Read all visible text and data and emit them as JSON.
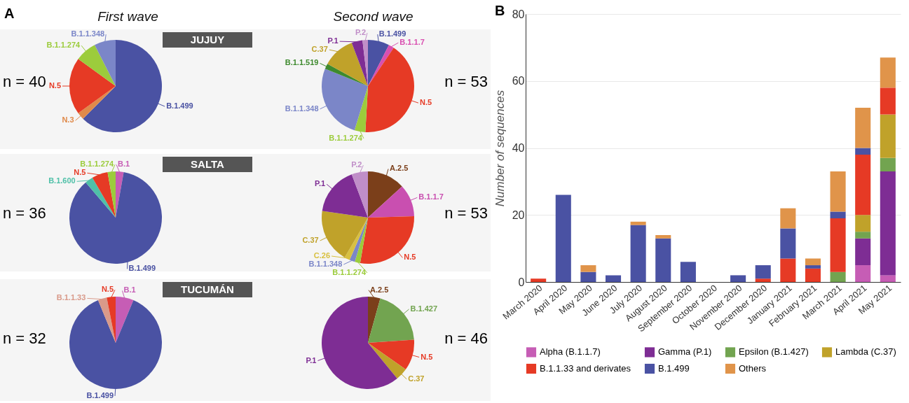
{
  "chart_data": [
    {
      "type": "pie",
      "title": "First wave",
      "subtitle": "JUJUY",
      "annotations": [
        "A",
        "n = 40"
      ],
      "categories": [
        "B.1.499",
        "N.3",
        "N.5",
        "B.1.1.274",
        "B.1.1.348"
      ],
      "values": [
        62.5,
        2.5,
        20,
        7.5,
        7.5
      ],
      "colors": [
        "#4a52a3",
        "#e08a4a",
        "#e63a25",
        "#9ccc3c",
        "#7b86c8"
      ]
    },
    {
      "type": "pie",
      "title": "Second wave",
      "annotations": [
        "n = 53"
      ],
      "categories": [
        "B.1.499",
        "B.1.1.7",
        "N.5",
        "B.1.1.274",
        "B.1.1.348",
        "B.1.1.519",
        "C.37",
        "P.1",
        "P.2"
      ],
      "values": [
        7.5,
        1.9,
        41.5,
        3.8,
        26.4,
        1.9,
        11.3,
        3.8,
        1.9
      ],
      "colors": [
        "#4a52a3",
        "#d94fb0",
        "#e63a25",
        "#9ccc3c",
        "#7b86c8",
        "#3e8a2e",
        "#c0a22a",
        "#7e2d94",
        "#c08ec8"
      ]
    },
    {
      "type": "pie",
      "subtitle": "SALTA",
      "annotations": [
        "n = 36"
      ],
      "categories": [
        "B.1",
        "B.1.499",
        "B.1.600",
        "N.5",
        "B.1.1.274"
      ],
      "values": [
        2.8,
        86.0,
        2.8,
        5.6,
        2.8
      ],
      "colors": [
        "#c65db5",
        "#4a52a3",
        "#4fc0a8",
        "#e63a25",
        "#9ccc3c"
      ]
    },
    {
      "type": "pie",
      "annotations": [
        "n = 53"
      ],
      "categories": [
        "A.2.5",
        "B.1.1.7",
        "N.5",
        "B.1.1.274",
        "B.1.1.348",
        "C.26",
        "C.37",
        "P.1",
        "P.2"
      ],
      "values": [
        13.2,
        11.3,
        28.2,
        1.9,
        1.9,
        1.9,
        18.9,
        17.0,
        5.7
      ],
      "colors": [
        "#7b3f1a",
        "#c94fb0",
        "#e63a25",
        "#9ccc3c",
        "#7b86c8",
        "#d8c040",
        "#c0a22a",
        "#7e2d94",
        "#c08ec8"
      ]
    },
    {
      "type": "pie",
      "subtitle": "TUCUMÁN",
      "annotations": [
        "n = 32"
      ],
      "categories": [
        "B.1",
        "B.1.499",
        "B.1.1.33",
        "N.5"
      ],
      "values": [
        6.3,
        87.5,
        3.1,
        3.1
      ],
      "colors": [
        "#c65db5",
        "#4a52a3",
        "#d99a8a",
        "#e63a25"
      ]
    },
    {
      "type": "pie",
      "annotations": [
        "n = 46"
      ],
      "categories": [
        "A.2.5",
        "B.1.427",
        "N.5",
        "C.37",
        "P.1"
      ],
      "values": [
        4.3,
        19.6,
        10.9,
        4.3,
        60.9
      ],
      "colors": [
        "#7b3f1a",
        "#72a450",
        "#e63a25",
        "#c0a22a",
        "#7e2d94"
      ]
    },
    {
      "type": "bar",
      "stacked": true,
      "annotations": [
        "B"
      ],
      "ylabel": "Number of sequences",
      "ylim": [
        0,
        80
      ],
      "yticks": [
        0,
        20,
        40,
        60,
        80
      ],
      "grid": "y",
      "legend": "bottom",
      "categories": [
        "March 2020",
        "April 2020",
        "May 2020",
        "June 2020",
        "July 2020",
        "August 2020",
        "September 2020",
        "October 2020",
        "November 2020",
        "December 2020",
        "January 2021",
        "February 2021",
        "March 2021",
        "April 2021",
        "May 2021"
      ],
      "series": [
        {
          "name": "Alpha (B.1.1.7)",
          "color": "#c65db5",
          "values": [
            0,
            0,
            0,
            0,
            0,
            0,
            0,
            0,
            0,
            0,
            0,
            0,
            0,
            5,
            2
          ]
        },
        {
          "name": "Gamma (P.1)",
          "color": "#7e2d94",
          "values": [
            0,
            0,
            0,
            0,
            0,
            0,
            0,
            0,
            0,
            0,
            0,
            0,
            0,
            8,
            31
          ]
        },
        {
          "name": "Epsilon (B.1.427)",
          "color": "#72a450",
          "values": [
            0,
            0,
            0,
            0,
            0,
            0,
            0,
            0,
            0,
            0,
            0,
            0,
            3,
            2,
            4
          ]
        },
        {
          "name": "Lambda (C.37)",
          "color": "#c0a22a",
          "values": [
            0,
            0,
            0,
            0,
            0,
            0,
            0,
            0,
            0,
            0,
            0,
            0,
            0,
            5,
            13
          ]
        },
        {
          "name": "B.1.1.33 and derivates",
          "color": "#e63a25",
          "values": [
            1,
            0,
            0,
            0,
            0,
            0,
            0,
            0,
            0,
            1,
            7,
            4,
            16,
            18,
            8
          ]
        },
        {
          "name": "B.1.499",
          "color": "#4a52a3",
          "values": [
            0,
            26,
            3,
            2,
            17,
            13,
            6,
            0,
            2,
            4,
            9,
            1,
            2,
            2,
            0
          ]
        },
        {
          "name": "Others",
          "color": "#e0944a",
          "values": [
            0,
            0,
            2,
            0,
            1,
            1,
            0,
            0,
            0,
            0,
            6,
            2,
            12,
            12,
            9
          ]
        }
      ]
    }
  ]
}
